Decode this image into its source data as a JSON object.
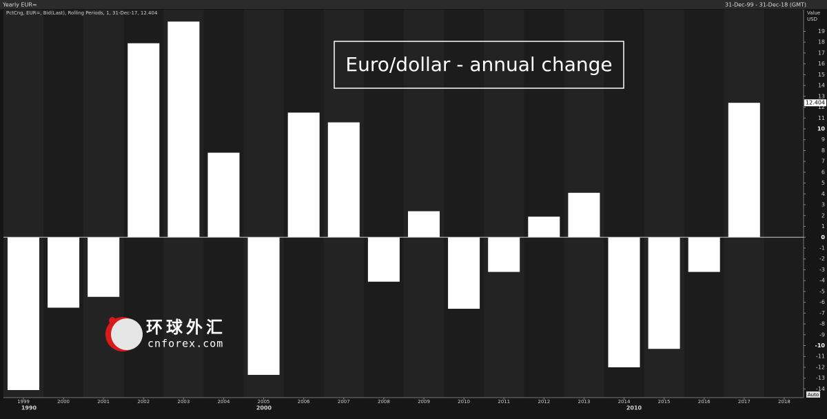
{
  "header": {
    "window_title": "Yearly EUR=",
    "date_range": "31-Dec-99 - 31-Dec-18 (GMT)"
  },
  "chart_data": {
    "type": "bar",
    "title": "Euro/dollar - annual change",
    "subtitle": "PctCng, EUR=, Bid(Last), Rolling Periods, 1, 31-Dec-17, 12.404",
    "y_axis_label": "Value",
    "y_axis_unit": "USD",
    "categories": [
      "1999",
      "2000",
      "2001",
      "2002",
      "2003",
      "2004",
      "2005",
      "2006",
      "2007",
      "2008",
      "2009",
      "2010",
      "2011",
      "2012",
      "2013",
      "2014",
      "2015",
      "2016",
      "2017",
      "2018"
    ],
    "values": [
      -14.1,
      -6.5,
      -5.5,
      17.9,
      19.9,
      7.8,
      -12.7,
      11.5,
      10.6,
      -4.1,
      2.4,
      -6.6,
      -3.2,
      1.9,
      4.1,
      -12.0,
      -10.3,
      -3.2,
      12.404,
      null
    ],
    "color": "#ffffff",
    "decades": [
      "1990",
      "2000",
      "2010"
    ],
    "ylim": [
      -14.8,
      21
    ],
    "yticks": [
      -14,
      -13,
      -12,
      -11,
      -10,
      -9,
      -8,
      -7,
      -6,
      -5,
      -4,
      -3,
      -2,
      -1,
      0,
      1,
      2,
      3,
      4,
      5,
      6,
      7,
      8,
      9,
      10,
      11,
      12,
      13,
      14,
      15,
      16,
      17,
      18,
      19
    ],
    "scale_mode": "Auto"
  },
  "watermark": {
    "name": "环球外汇",
    "site": "cnforex.com"
  }
}
